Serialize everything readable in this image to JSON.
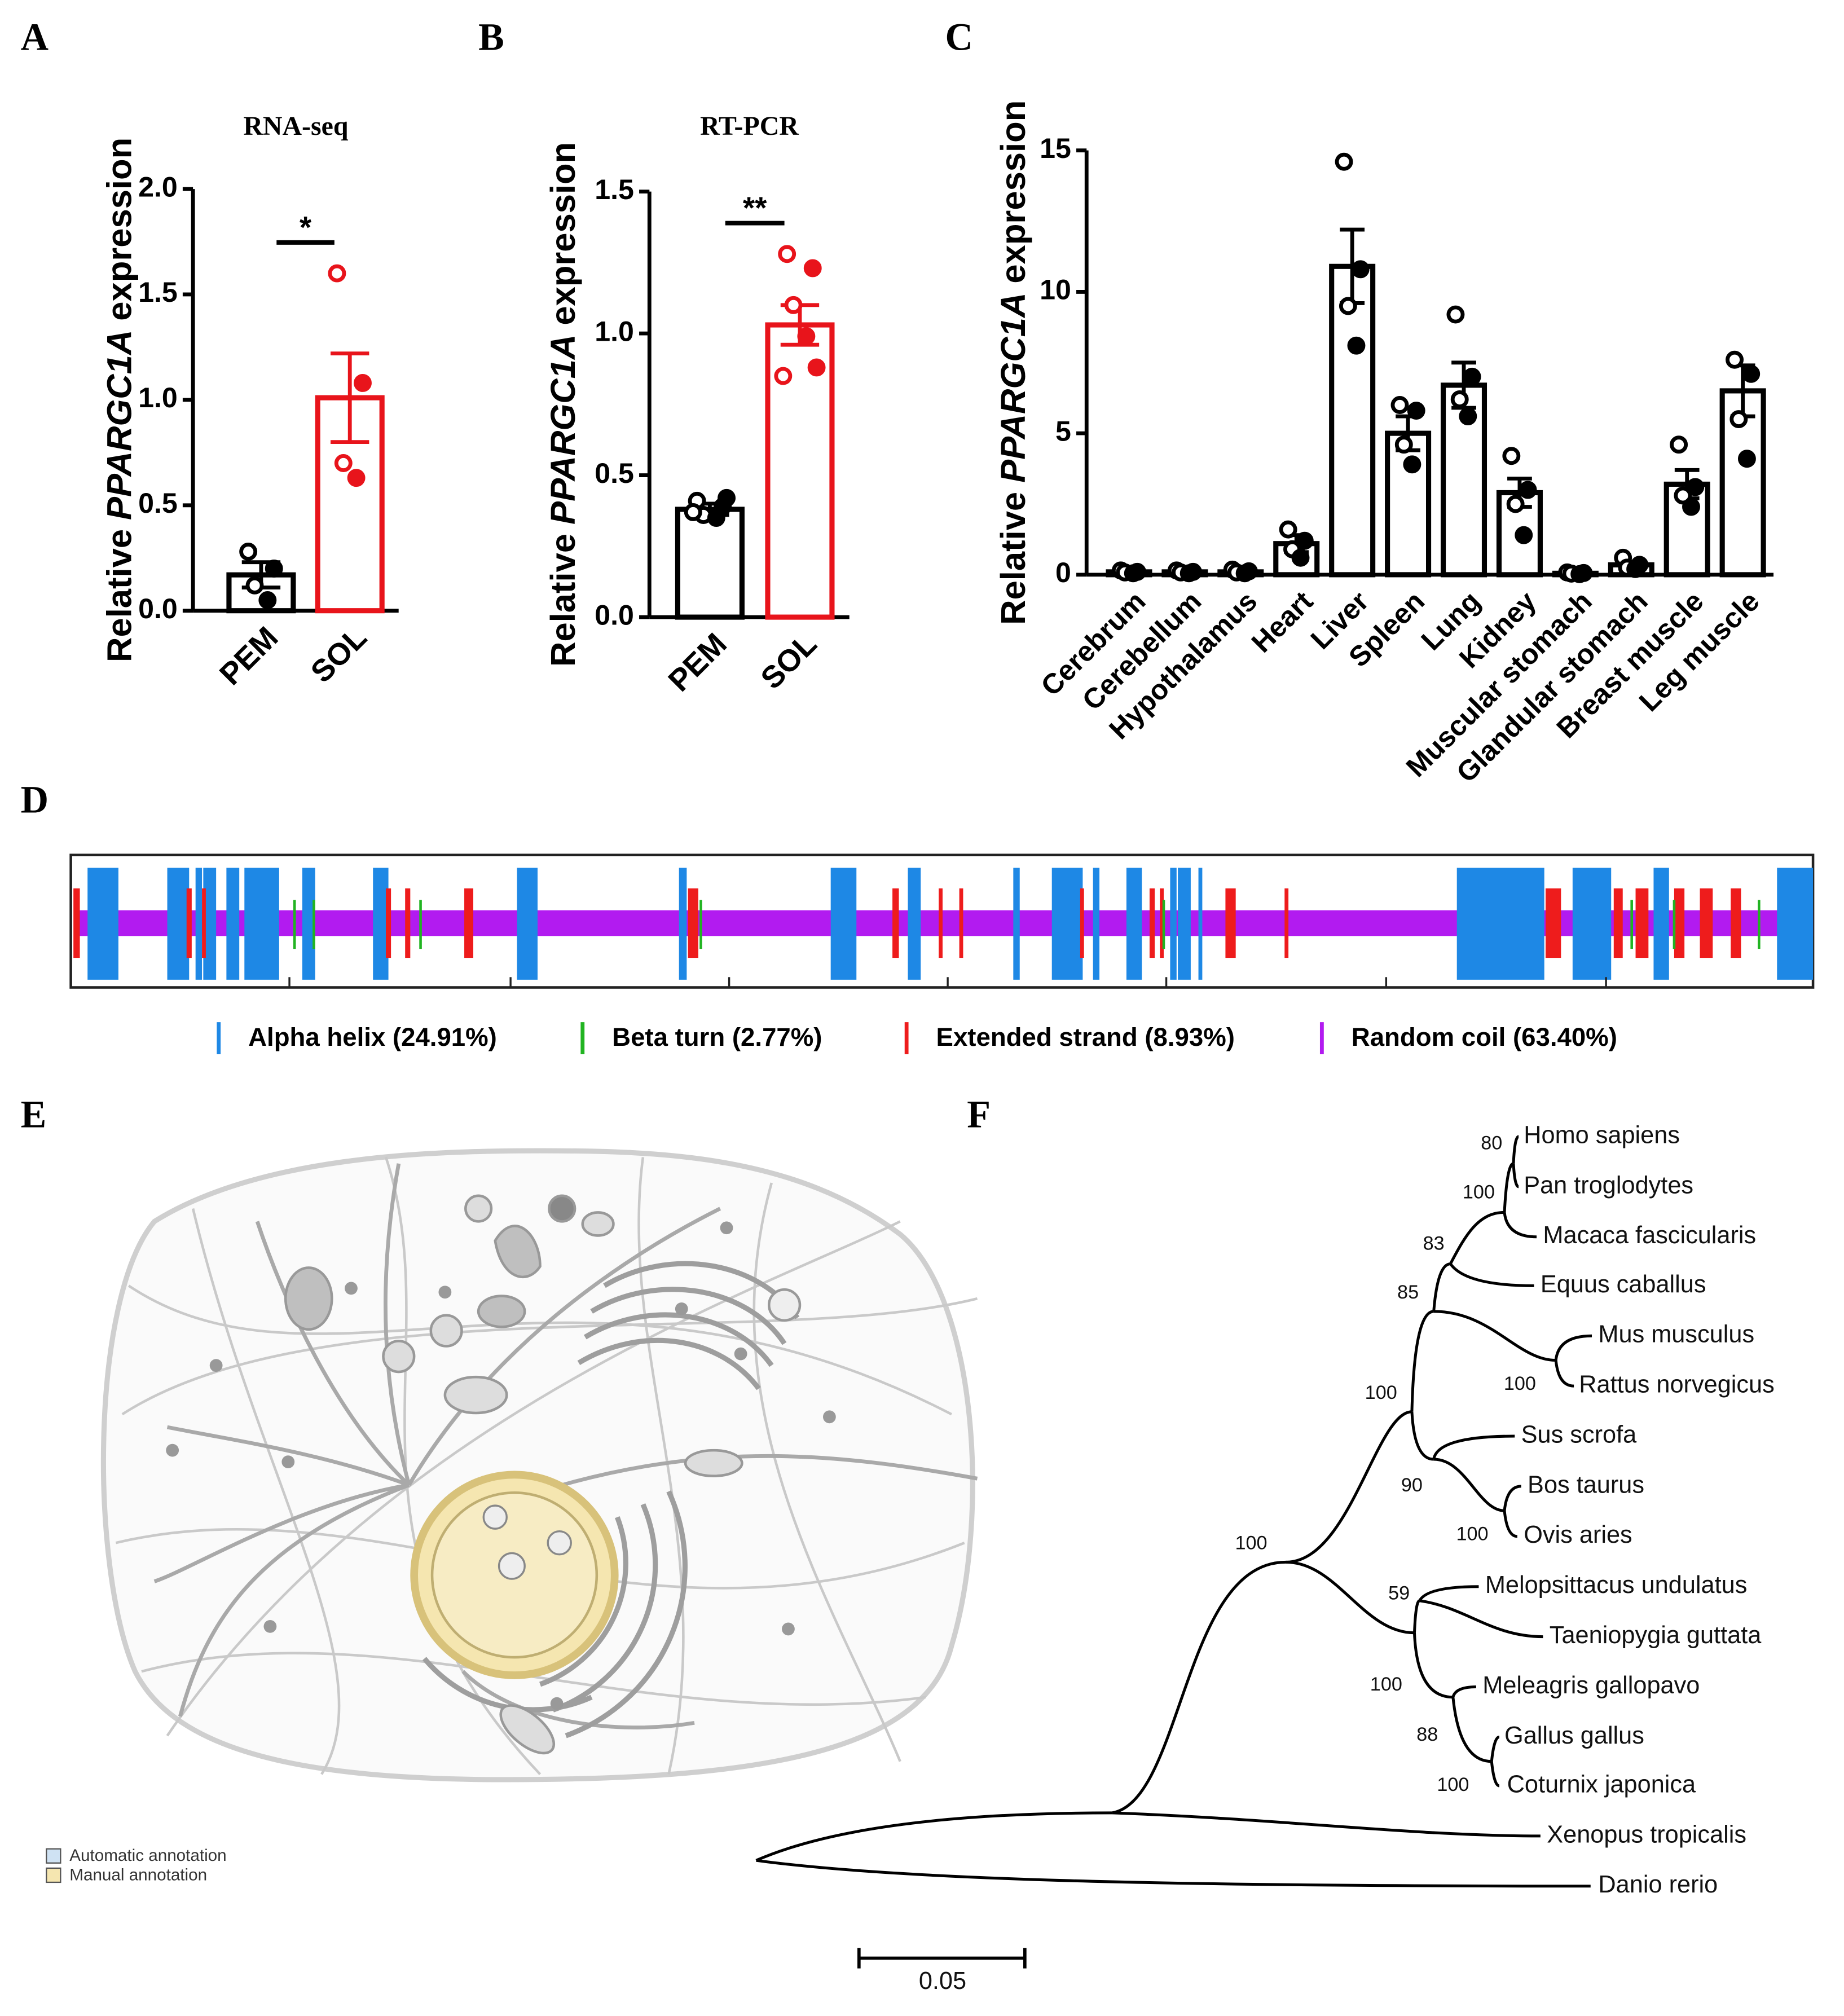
{
  "panels": [
    "A",
    "B",
    "C",
    "D",
    "E",
    "F"
  ],
  "chart_data": [
    {
      "type": "bar",
      "title": "RNA-seq",
      "ylabel_parts": [
        "Relative",
        "PPARGC1A",
        "expression"
      ],
      "categories": [
        "PEM",
        "SOL"
      ],
      "values": [
        0.17,
        1.01
      ],
      "errors": [
        0.06,
        0.21
      ],
      "points": [
        [
          0.28,
          0.2,
          0.12,
          0.05
        ],
        [
          1.6,
          1.08,
          0.7,
          0.63
        ]
      ],
      "colors": [
        "#000000",
        "#e8141b"
      ],
      "ylim": [
        0,
        2
      ],
      "yticks": [
        {
          "value": 0,
          "label": "0.0"
        },
        {
          "value": 0.5,
          "label": "0.5"
        },
        {
          "value": 1,
          "label": "1.0"
        },
        {
          "value": 1.5,
          "label": "1.5"
        },
        {
          "value": 2,
          "label": "2.0"
        }
      ],
      "significance": "*"
    },
    {
      "type": "bar",
      "title": "RT-PCR",
      "ylabel_parts": [
        "Relative",
        "PPARGC1A",
        "expression"
      ],
      "categories": [
        "PEM",
        "SOL"
      ],
      "values": [
        0.38,
        1.03
      ],
      "errors": [
        0.02,
        0.07
      ],
      "points": [
        [
          0.41,
          0.39,
          0.36,
          0.35,
          0.37,
          0.42
        ],
        [
          1.28,
          1.23,
          1.1,
          0.99,
          0.85,
          0.88
        ]
      ],
      "colors": [
        "#000000",
        "#e8141b"
      ],
      "ylim": [
        0,
        1.5
      ],
      "yticks": [
        {
          "value": 0,
          "label": "0.0"
        },
        {
          "value": 0.5,
          "label": "0.5"
        },
        {
          "value": 1,
          "label": "1.0"
        },
        {
          "value": 1.5,
          "label": "1.5"
        }
      ],
      "significance": "**"
    },
    {
      "type": "bar",
      "ylabel_parts": [
        "Relative",
        "PPARGC1A",
        "expression"
      ],
      "categories": [
        "Cerebrum",
        "Cerebellum",
        "Hypothalamus",
        "Heart",
        "Liver",
        "Spleen",
        "Lung",
        "Kidney",
        "Muscular stomach",
        "Glandular stomach",
        "Breast muscle",
        "Leg muscle"
      ],
      "values": [
        0.1,
        0.1,
        0.1,
        1.1,
        10.9,
        5.0,
        6.7,
        2.9,
        0.05,
        0.35,
        3.2,
        6.5
      ],
      "errors": [
        0.05,
        0.05,
        0.05,
        0.3,
        1.3,
        0.6,
        0.8,
        0.5,
        0.02,
        0.1,
        0.5,
        0.9
      ],
      "points": [
        [
          0.15,
          0.1,
          0.08,
          0.05
        ],
        [
          0.15,
          0.1,
          0.08,
          0.05
        ],
        [
          0.18,
          0.12,
          0.08,
          0.05
        ],
        [
          1.6,
          1.2,
          0.9,
          0.6
        ],
        [
          14.6,
          10.8,
          9.5,
          8.1
        ],
        [
          6.0,
          5.8,
          4.6,
          3.9
        ],
        [
          9.2,
          7.0,
          6.2,
          5.6
        ],
        [
          4.2,
          3.0,
          2.5,
          1.4
        ],
        [
          0.08,
          0.06,
          0.04,
          0.02
        ],
        [
          0.6,
          0.35,
          0.25,
          0.2
        ],
        [
          4.6,
          3.1,
          2.8,
          2.4
        ],
        [
          7.6,
          7.1,
          5.5,
          4.1
        ]
      ],
      "colors": [
        "#000000"
      ],
      "ylim": [
        0,
        15
      ],
      "yticks": [
        0,
        5,
        10,
        15
      ]
    }
  ],
  "secondary_structure": {
    "legend": [
      {
        "label": "Alpha helix (24.91%)",
        "color": "#1e88e5"
      },
      {
        "label": "Beta turn (2.77%)",
        "color": "#21b421"
      },
      {
        "label": "Extended strand (8.93%)",
        "color": "#ee1c1c"
      },
      {
        "label": "Random coil (63.40%)",
        "color": "#b21bf0"
      }
    ]
  },
  "cell_legend": [
    "Automatic annotation",
    "Manual annotation"
  ],
  "tree": {
    "leaves": [
      "Homo sapiens",
      "Pan troglodytes",
      "Macaca fascicularis",
      "Equus caballus",
      "Mus musculus",
      "Rattus norvegicus",
      "Sus scrofa",
      "Bos taurus",
      "Ovis aries",
      "Melopsittacus undulatus",
      "Taeniopygia guttata",
      "Meleagris gallopavo",
      "Gallus gallus",
      "Coturnix japonica",
      "Xenopus tropicalis",
      "Danio rerio"
    ],
    "bootstrap": [
      80,
      100,
      83,
      85,
      100,
      100,
      90,
      100,
      100,
      59,
      100,
      88,
      100
    ],
    "scale_label": "0.05"
  }
}
